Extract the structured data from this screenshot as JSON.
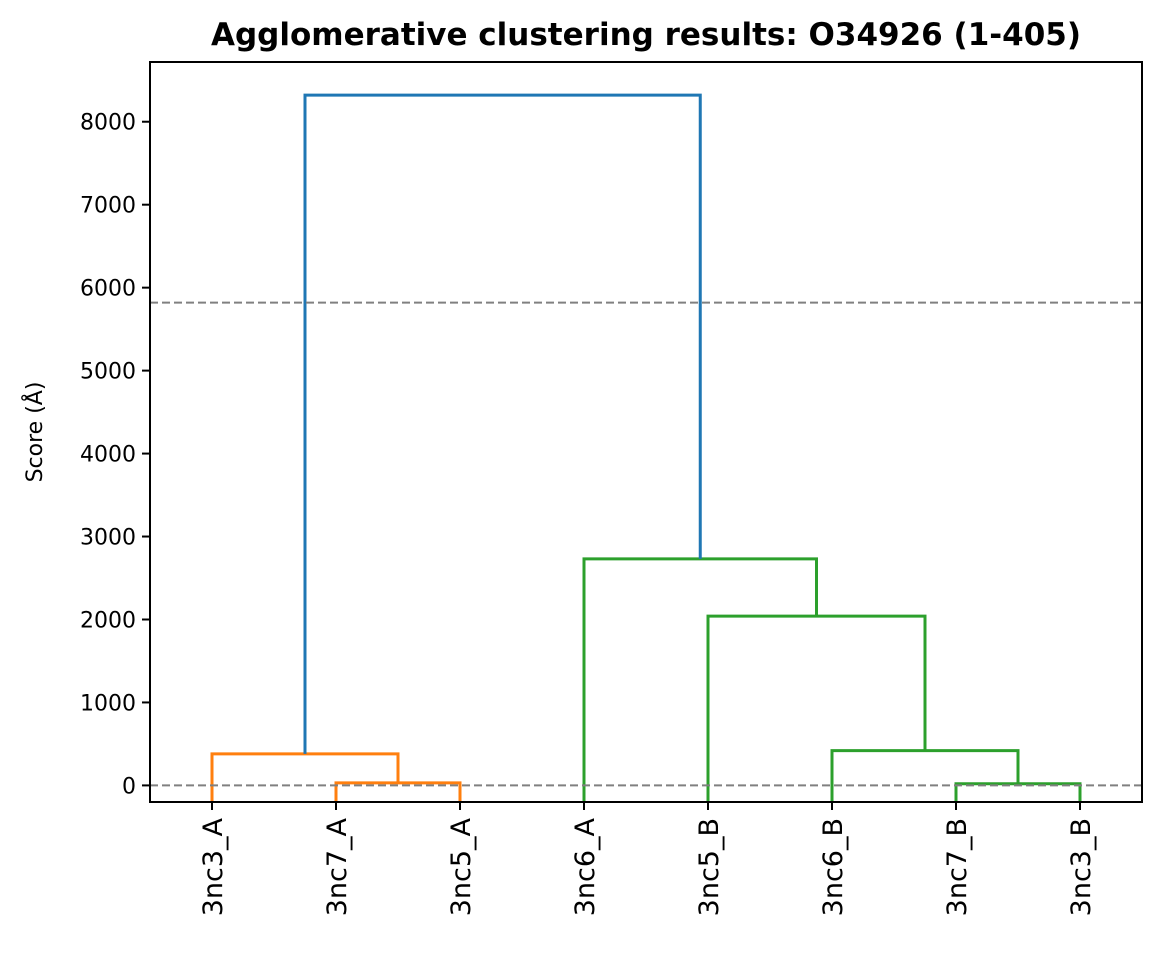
{
  "chart_data": {
    "type": "dendrogram",
    "title": "Agglomerative clustering results: O34926 (1-405)",
    "xlabel": "",
    "ylabel": "Score (Å)",
    "ylim": [
      -200,
      8720
    ],
    "yticks": [
      0,
      1000,
      2000,
      3000,
      4000,
      5000,
      6000,
      7000,
      8000
    ],
    "grid": false,
    "leaves": [
      "3nc3_A",
      "3nc7_A",
      "3nc5_A",
      "3nc6_A",
      "3nc5_B",
      "3nc6_B",
      "3nc7_B",
      "3nc3_B"
    ],
    "cutoff_lines": [
      5820,
      0
    ],
    "cutoff_color": "#808080",
    "colors": {
      "orange": "#ff7f0e",
      "green": "#2ca02c",
      "blue": "#1f77b4"
    },
    "merges": [
      {
        "left": "3nc7_A",
        "right": "3nc5_A",
        "height": 30,
        "color": "orange"
      },
      {
        "left": "3nc3_A",
        "right": "(3nc7_A, 3nc5_A)",
        "height": 380,
        "color": "orange"
      },
      {
        "left": "3nc7_B",
        "right": "3nc3_B",
        "height": 20,
        "color": "green"
      },
      {
        "left": "3nc6_B",
        "right": "(3nc7_B, 3nc3_B)",
        "height": 420,
        "color": "green"
      },
      {
        "left": "3nc5_B",
        "right": "(3nc6_B, 3nc7_B, 3nc3_B)",
        "height": 2040,
        "color": "green"
      },
      {
        "left": "3nc6_A",
        "right": "(3nc5_B, 3nc6_B, 3nc7_B, 3nc3_B)",
        "height": 2730,
        "color": "green"
      },
      {
        "left": "(3nc3_A, 3nc7_A, 3nc5_A)",
        "right": "(3nc6_A, 3nc5_B, 3nc6_B, 3nc7_B, 3nc3_B)",
        "height": 8320,
        "color": "blue"
      }
    ]
  }
}
